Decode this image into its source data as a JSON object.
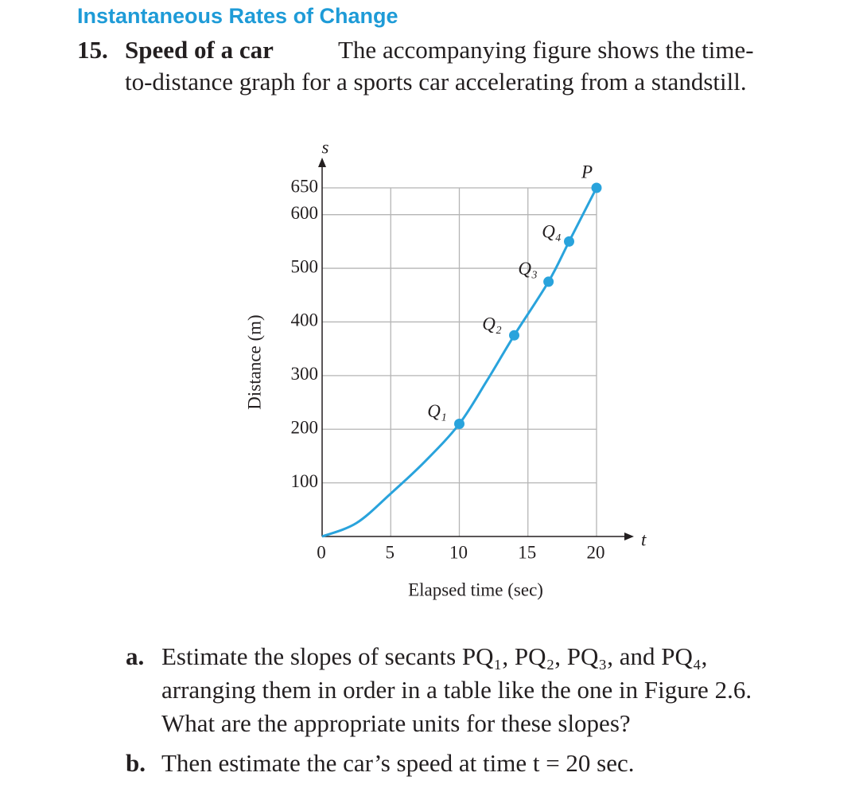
{
  "header": {
    "title": "Instantaneous Rates of Change"
  },
  "problem": {
    "number": "15.",
    "title": "Speed of a car",
    "lines": [
      "The accompanying figure shows the time-",
      "to-distance graph for a sports car accelerating from a standstill."
    ]
  },
  "chart_data": {
    "type": "line",
    "x_label": "Elapsed time (sec)",
    "y_label": "Distance (m)",
    "x_axis_name": "t",
    "y_axis_name": "s",
    "xlim": [
      0,
      20
    ],
    "ylim": [
      0,
      650
    ],
    "xticks": [
      0,
      5,
      10,
      15,
      20
    ],
    "yticks": [
      100,
      200,
      300,
      400,
      500,
      600,
      650
    ],
    "grid": true,
    "color": "#29a3dc",
    "curve": {
      "x": [
        0,
        2.5,
        5,
        7.5,
        10,
        12,
        14,
        16.5,
        18,
        20
      ],
      "y": [
        0,
        25,
        80,
        140,
        210,
        290,
        375,
        475,
        550,
        650
      ]
    },
    "points": {
      "labels": [
        "Q₁",
        "Q₂",
        "Q₃",
        "Q₄",
        "P"
      ],
      "x": [
        10,
        14,
        16.5,
        18,
        20
      ],
      "y": [
        210,
        375,
        475,
        550,
        650
      ]
    }
  },
  "questions": [
    {
      "label": "a.",
      "lines": [
        "Estimate the slopes of secants PQ₁, PQ₂, PQ₃, and PQ₄,",
        "arranging them in order in a table like the one in Figure 2.6.",
        "What are the appropriate units for these slopes?"
      ]
    },
    {
      "label": "b.",
      "lines": [
        "Then estimate the car’s speed at time t = 20 sec."
      ]
    }
  ]
}
